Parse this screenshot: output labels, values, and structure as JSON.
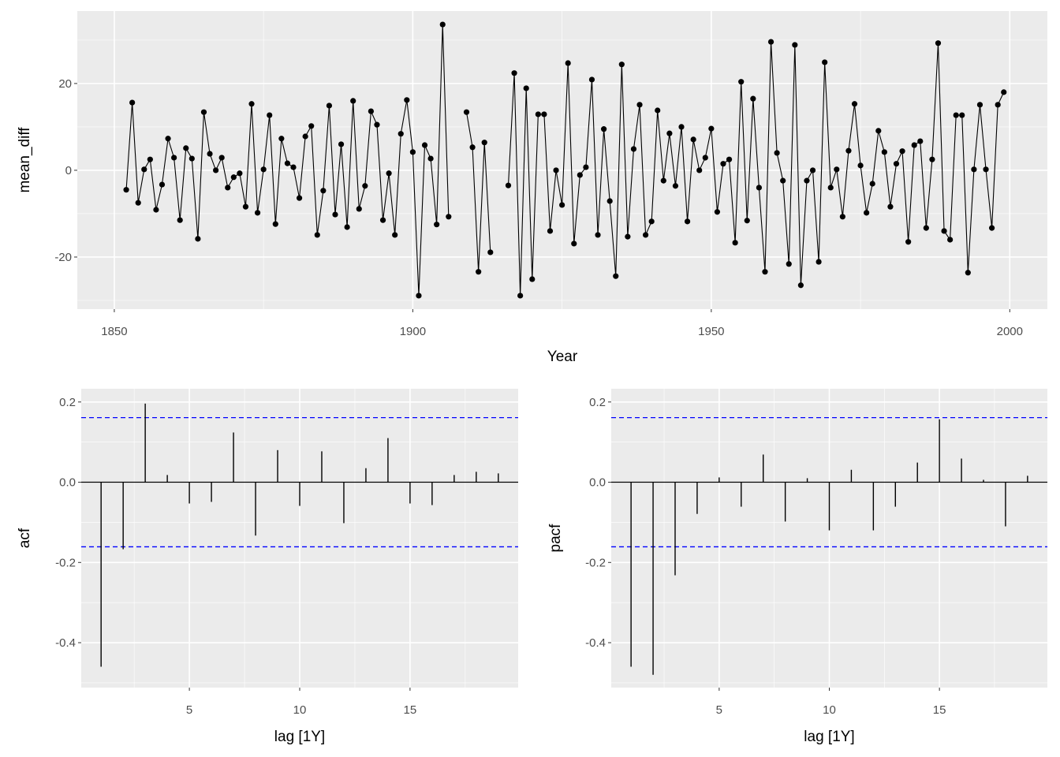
{
  "chart_data": [
    {
      "type": "line",
      "id": "ts",
      "xlabel": "Year",
      "ylabel": "mean_diff",
      "xlim": [
        1843.8,
        2006.3
      ],
      "ylim": [
        -32,
        36.7
      ],
      "xticks": [
        1850,
        1900,
        1950,
        2000
      ],
      "xtick_labels": [
        "1850",
        "1900",
        "1950",
        "2000"
      ],
      "yticks": [
        -20,
        0,
        20
      ],
      "ytick_labels": [
        "-20",
        "0",
        "20"
      ],
      "grid": true,
      "x_start": 1852,
      "values": [
        -4.5,
        15.6,
        -7.5,
        0.2,
        2.5,
        -9.1,
        -3.3,
        7.3,
        2.9,
        -11.5,
        5.1,
        2.7,
        -15.8,
        13.4,
        3.8,
        0,
        2.9,
        -4,
        -1.6,
        -0.7,
        -8.4,
        15.3,
        -9.8,
        0.2,
        12.7,
        -12.4,
        7.3,
        1.6,
        0.7,
        -6.4,
        7.8,
        10.2,
        -14.9,
        -4.7,
        14.9,
        -10.2,
        6,
        -13.1,
        16,
        -8.9,
        -3.6,
        13.6,
        10.5,
        -11.5,
        -0.7,
        -14.9,
        8.4,
        16.2,
        4.2,
        -28.9,
        5.8,
        2.7,
        -12.5,
        33.6,
        -10.7,
        null,
        null,
        13.4,
        5.3,
        -23.4,
        6.4,
        -18.9,
        null,
        null,
        -3.5,
        22.4,
        -28.9,
        18.9,
        -25.1,
        12.9,
        12.9,
        -14,
        0,
        -8,
        24.7,
        -16.9,
        -1.1,
        0.7,
        20.9,
        -14.9,
        9.5,
        -7.1,
        -24.4,
        24.4,
        -15.3,
        4.9,
        15.1,
        -14.9,
        -11.8,
        13.8,
        -2.4,
        8.5,
        -3.6,
        10,
        -11.8,
        7.1,
        0,
        2.9,
        9.6,
        -9.6,
        1.5,
        2.5,
        -16.7,
        20.4,
        -11.6,
        16.5,
        -4,
        -23.4,
        29.6,
        4,
        -2.4,
        -21.6,
        28.9,
        -26.5,
        -2.4,
        0,
        -21.1,
        24.9,
        -4,
        0.2,
        -10.7,
        4.5,
        15.3,
        1.1,
        -9.8,
        -3.1,
        9.1,
        4.2,
        -8.4,
        1.5,
        4.4,
        -16.5,
        5.8,
        6.7,
        -13.3,
        2.5,
        29.3,
        -14,
        -16,
        12.7,
        12.7,
        -23.6,
        0.2,
        15.1,
        0.2,
        -13.3,
        15.1,
        18
      ]
    },
    {
      "type": "bar",
      "id": "acf",
      "xlabel": "lag [1Y]",
      "ylabel": "acf",
      "xlim": [
        0.1,
        19.9
      ],
      "ylim": [
        -0.512,
        0.233
      ],
      "xticks": [
        5,
        10,
        15
      ],
      "xtick_labels": [
        "5",
        "10",
        "15"
      ],
      "yticks": [
        -0.4,
        -0.2,
        0.0,
        0.2
      ],
      "ytick_labels": [
        "-0.4",
        "-0.2",
        "0.0",
        "0.2"
      ],
      "grid": true,
      "confidence_bound": 0.161,
      "lags": [
        1,
        2,
        3,
        4,
        5,
        6,
        7,
        8,
        9,
        10,
        11,
        12,
        13,
        14,
        15,
        16,
        17,
        18,
        19
      ],
      "values": [
        -0.46,
        -0.167,
        0.196,
        0.018,
        -0.053,
        -0.049,
        0.124,
        -0.133,
        0.08,
        -0.059,
        0.077,
        -0.102,
        0.035,
        0.11,
        -0.053,
        -0.057,
        0.018,
        0.026,
        0.022
      ]
    },
    {
      "type": "bar",
      "id": "pacf",
      "xlabel": "lag [1Y]",
      "ylabel": "pacf",
      "xlim": [
        0.1,
        19.9
      ],
      "ylim": [
        -0.512,
        0.233
      ],
      "xticks": [
        5,
        10,
        15
      ],
      "xtick_labels": [
        "5",
        "10",
        "15"
      ],
      "yticks": [
        -0.4,
        -0.2,
        0.0,
        0.2
      ],
      "ytick_labels": [
        "-0.4",
        "-0.2",
        "0.0",
        "0.2"
      ],
      "grid": true,
      "confidence_bound": 0.161,
      "lags": [
        1,
        2,
        3,
        4,
        5,
        6,
        7,
        8,
        9,
        10,
        11,
        12,
        13,
        14,
        15,
        16,
        17,
        18,
        19
      ],
      "values": [
        -0.46,
        -0.48,
        -0.232,
        -0.079,
        0.012,
        -0.061,
        0.069,
        -0.098,
        0.01,
        -0.12,
        0.031,
        -0.12,
        -0.061,
        0.049,
        0.157,
        0.059,
        0.006,
        -0.11,
        0.016
      ]
    }
  ],
  "colors": {
    "panel": "#ebebeb",
    "grid": "#ffffff",
    "series": "#000000",
    "bound": "#0000ff",
    "tick_text": "#4d4d4d"
  }
}
